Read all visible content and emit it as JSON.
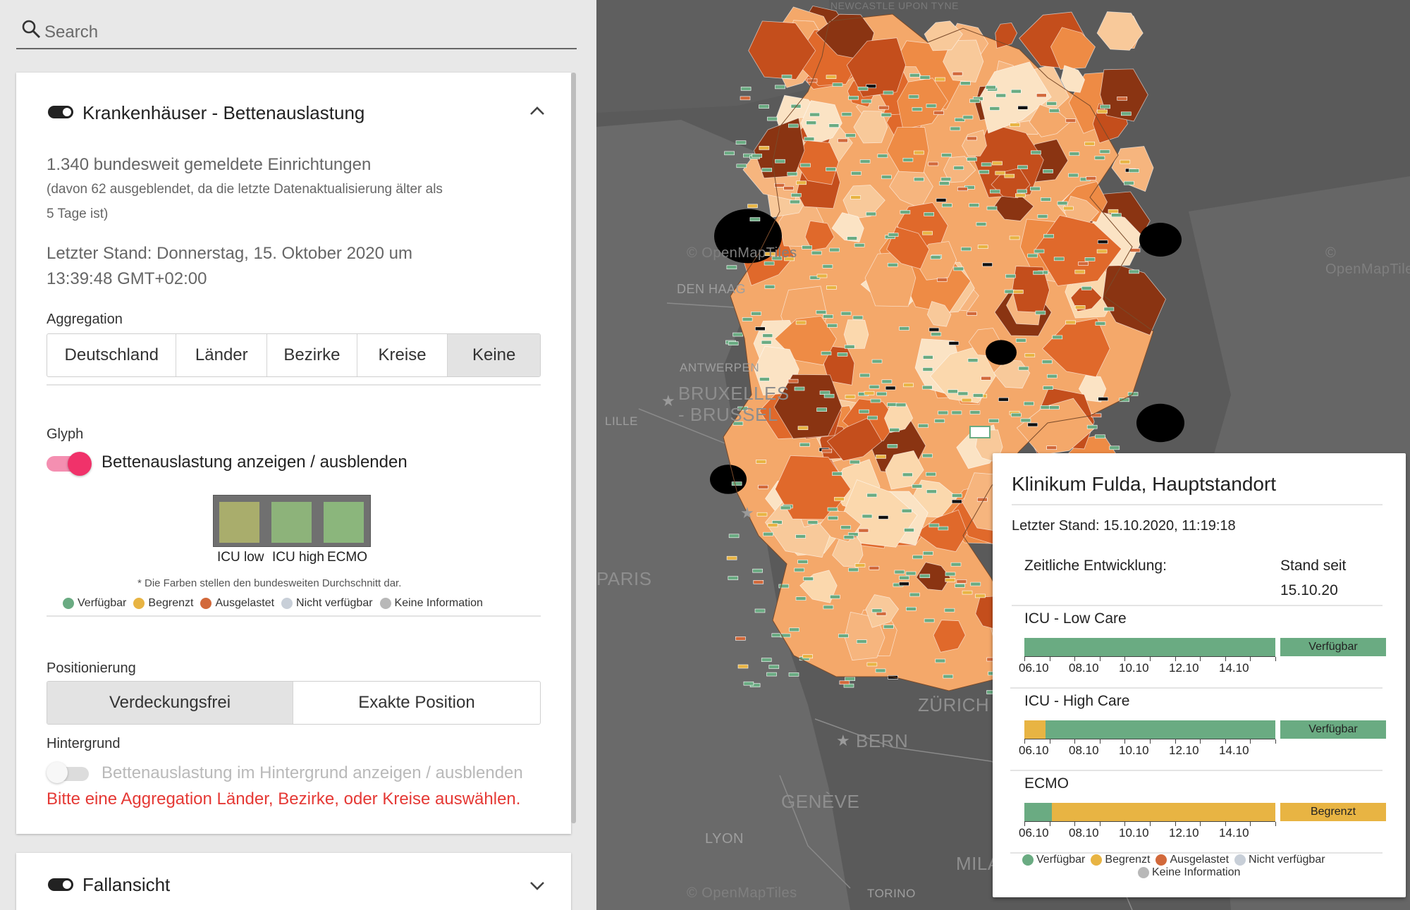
{
  "search": {
    "placeholder": "Search"
  },
  "panel": {
    "title": "Krankenhäuser - Bettenauslastung",
    "info_line1": "1.340 bundesweit gemeldete Einrichtungen",
    "info_line2": "(davon 62 ausgeblendet, da die letzte Datenaktualisierung älter als",
    "info_line3": "5 Tage ist)",
    "updated_line1": "Letzter Stand: Donnerstag, 15. Oktober 2020 um",
    "updated_line2": "13:39:48 GMT+02:00",
    "aggregation_label": "Aggregation",
    "aggregation_options": [
      "Deutschland",
      "Länder",
      "Bezirke",
      "Kreise",
      "Keine"
    ],
    "aggregation_selected": "Keine",
    "glyph_label": "Glyph",
    "glyph_toggle_label": "Bettenauslastung anzeigen / ausblenden",
    "glyph_toggle_on": true,
    "glyph_colors": [
      "#a9ad6c",
      "#8db37a",
      "#8bb67c"
    ],
    "glyph_labels": [
      "ICU low",
      "ICU high",
      "ECMO"
    ],
    "glyph_note": "* Die Farben stellen den bundesweiten Durchschnitt dar.",
    "legend": [
      {
        "label": "Verfügbar",
        "color": "#6aab82"
      },
      {
        "label": "Begrenzt",
        "color": "#e8b443"
      },
      {
        "label": "Ausgelastet",
        "color": "#d2693b"
      },
      {
        "label": "Nicht verfügbar",
        "color": "#c8cfd8"
      },
      {
        "label": "Keine Information",
        "color": "#b8b8b8"
      }
    ],
    "positioning_label": "Positionierung",
    "positioning_options": [
      "Verdeckungsfrei",
      "Exakte Position"
    ],
    "positioning_selected": "Verdeckungsfrei",
    "background_label": "Hintergrund",
    "background_toggle_label": "Bettenauslastung im Hintergrund anzeigen / ausblenden",
    "background_toggle_on": false,
    "warning": "Bitte eine Aggregation Länder, Bezirke, oder Kreise auswählen."
  },
  "panel2": {
    "title": "Fallansicht"
  },
  "map": {
    "cities": [
      "DEN HAAG",
      "ANTWERPEN",
      "BRUXELLES",
      "- BRUSSEL",
      "LILLE",
      "PARIS",
      "ZÜRICH",
      "BERN",
      "GENÈVE",
      "LYON",
      "MILANO",
      "TORINO",
      "NEWCASTLE UPON TYNE"
    ],
    "attribution": "© OpenMapTiles"
  },
  "popup": {
    "title": "Klinikum Fulda, Hauptstandort",
    "updated": "Letzter Stand: 15.10.2020, 11:19:18",
    "development_label": "Zeitliche Entwicklung:",
    "since_label": "Stand seit",
    "since_date": "15.10.20",
    "tick_labels": [
      "06.10",
      "08.10",
      "10.10",
      "12.10",
      "14.10"
    ],
    "categories": [
      {
        "name": "ICU - Low Care",
        "status": "Verfügbar",
        "status_color": "#6aab82",
        "yellow_fraction": 0.0
      },
      {
        "name": "ICU - High Care",
        "status": "Verfügbar",
        "status_color": "#6aab82",
        "yellow_fraction": 0.085
      },
      {
        "name": "ECMO",
        "status": "Begrenzt",
        "status_color": "#e8b443",
        "yellow_fraction": 0.89
      }
    ],
    "legend_row1": [
      "Verfügbar",
      "Begrenzt",
      "Ausgelastet",
      "Nicht verfügbar"
    ],
    "legend_row2": [
      "Keine Information"
    ]
  }
}
